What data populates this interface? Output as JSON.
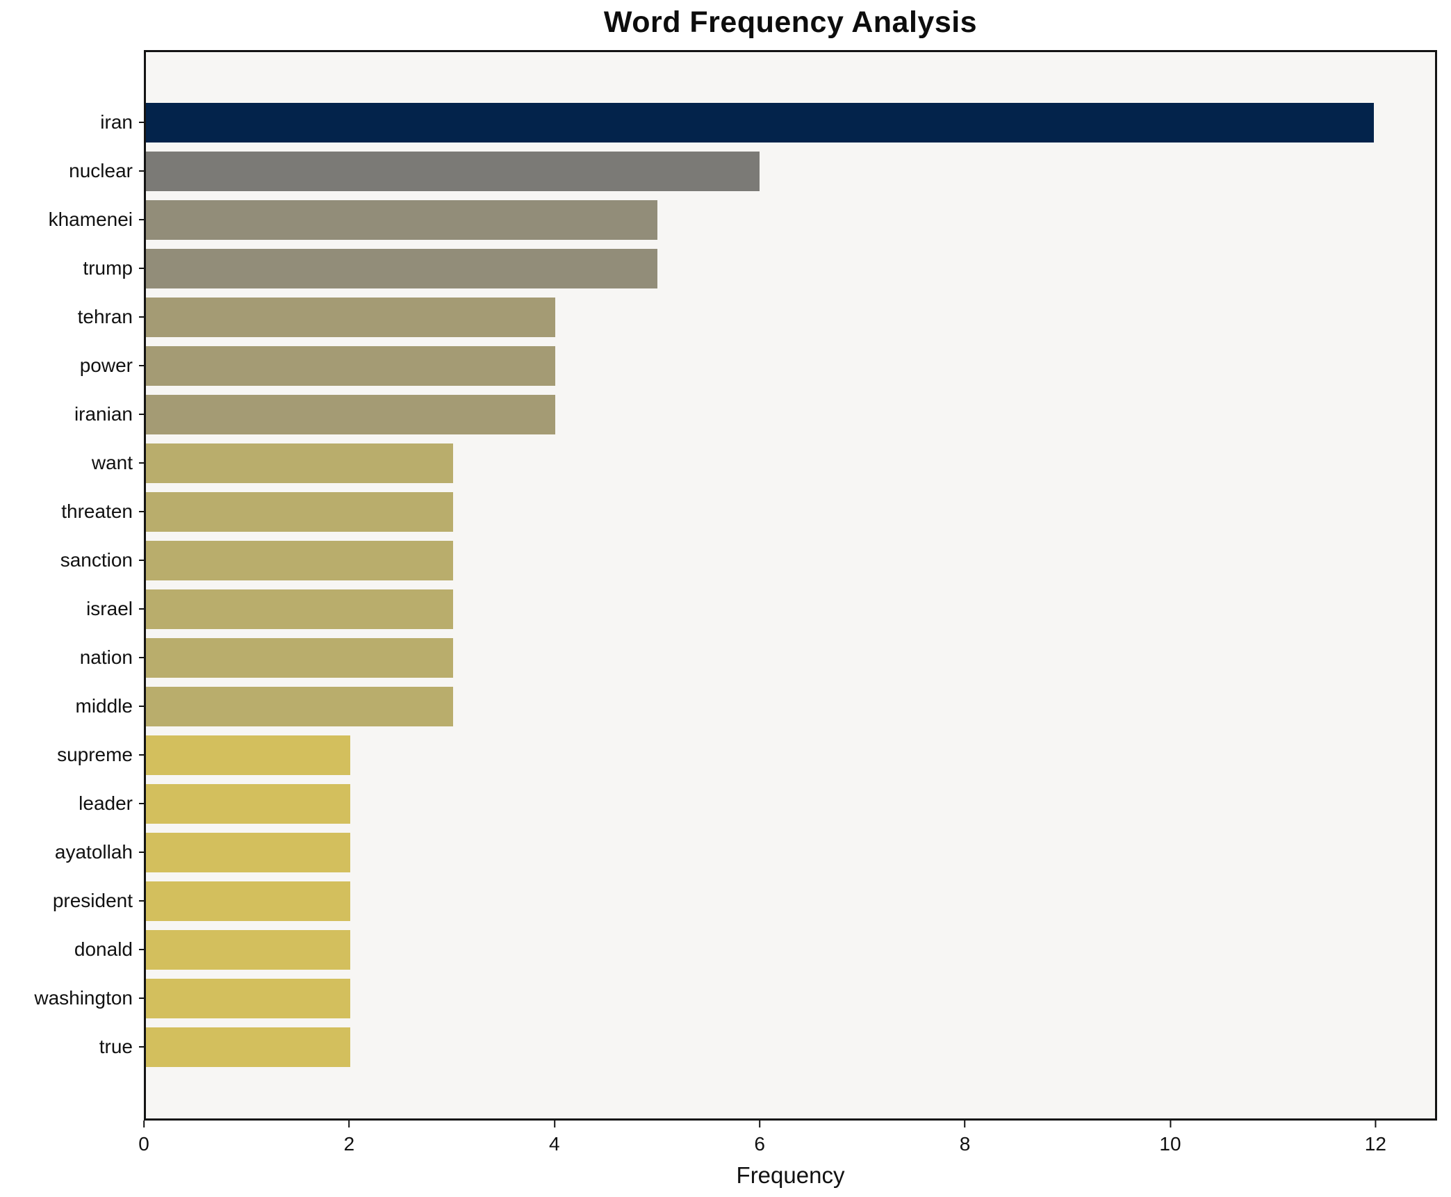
{
  "title": "Word Frequency Analysis",
  "xlabel": "Frequency",
  "chart_data": {
    "type": "bar",
    "orientation": "horizontal",
    "title": "Word Frequency Analysis",
    "xlabel": "Frequency",
    "ylabel": "",
    "grid": false,
    "legend": false,
    "xlim": [
      0,
      12.6
    ],
    "xticks": [
      0,
      2,
      4,
      6,
      8,
      10,
      12
    ],
    "categories": [
      "iran",
      "nuclear",
      "khamenei",
      "trump",
      "tehran",
      "power",
      "iranian",
      "want",
      "threaten",
      "sanction",
      "israel",
      "nation",
      "middle",
      "supreme",
      "leader",
      "ayatollah",
      "president",
      "donald",
      "washington",
      "true"
    ],
    "values": [
      12,
      6,
      5,
      5,
      4,
      4,
      4,
      3,
      3,
      3,
      3,
      3,
      3,
      2,
      2,
      2,
      2,
      2,
      2,
      2
    ],
    "bar_colors": [
      "#03234b",
      "#7b7a76",
      "#928d79",
      "#928d79",
      "#a49b74",
      "#a49b74",
      "#a49b74",
      "#b9ad6c",
      "#b9ad6c",
      "#b9ad6c",
      "#b9ad6c",
      "#b9ad6c",
      "#b9ad6c",
      "#d3bf5d",
      "#d3bf5d",
      "#d3bf5d",
      "#d3bf5d",
      "#d3bf5d",
      "#d3bf5d",
      "#d3bf5d"
    ],
    "plot_background": "#f7f6f4",
    "figure_background": "#ffffff",
    "spine_color": "#141414",
    "text_color": "#111111"
  }
}
